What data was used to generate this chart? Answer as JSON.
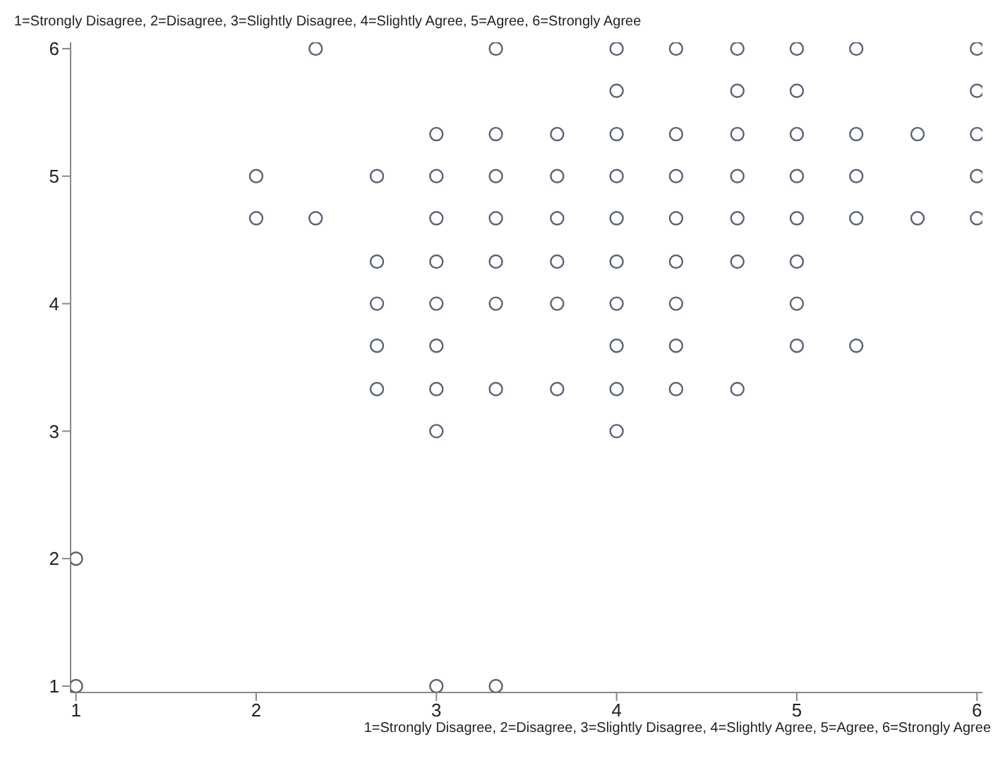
{
  "chart_data": {
    "type": "scatter",
    "ylabel": "1=Strongly Disagree, 2=Disagree, 3=Slightly Disagree, 4=Slightly Agree, 5=Agree, 6=Strongly Agree",
    "xlabel": "1=Strongly Disagree, 2=Disagree, 3=Slightly Disagree, 4=Slightly Agree, 5=Agree, 6=Strongly Agree",
    "x": [
      1,
      1,
      2,
      2,
      2.33,
      2.33,
      2.67,
      2.67,
      2.67,
      2.67,
      2.67,
      3,
      3,
      3,
      3,
      3,
      3,
      3,
      3,
      3,
      3.33,
      3.33,
      3.33,
      3.33,
      3.33,
      3.33,
      3.33,
      3.33,
      3.67,
      3.67,
      3.67,
      3.67,
      3.67,
      3.67,
      4,
      4,
      4,
      4,
      4,
      4,
      4,
      4,
      4,
      4,
      4.33,
      4.33,
      4.33,
      4.33,
      4.33,
      4.33,
      4.33,
      4.33,
      4.67,
      4.67,
      4.67,
      4.67,
      4.67,
      4.67,
      4.67,
      5,
      5,
      5,
      5,
      5,
      5,
      5,
      5,
      5.33,
      5.33,
      5.33,
      5.33,
      5.33,
      5.67,
      5.67,
      6,
      6,
      6,
      6,
      6
    ],
    "values": [
      2,
      1,
      5,
      4.67,
      6,
      4.67,
      5,
      4.33,
      4,
      3.67,
      3.33,
      5.33,
      5,
      4.67,
      4.33,
      4,
      3.67,
      3.33,
      3,
      1,
      6,
      5.33,
      5,
      4.67,
      4.33,
      4,
      3.33,
      1,
      5.33,
      5,
      4.67,
      4.33,
      4,
      3.33,
      6,
      5.67,
      5.33,
      5,
      4.67,
      4.33,
      4,
      3.67,
      3.33,
      3,
      6,
      5.33,
      5,
      4.67,
      4.33,
      4,
      3.67,
      3.33,
      6,
      5.67,
      5.33,
      5,
      4.67,
      4.33,
      3.33,
      6,
      5.67,
      5.33,
      5,
      4.67,
      4.33,
      4,
      3.67,
      6,
      5.33,
      5,
      4.67,
      3.67,
      5.33,
      4.67,
      6,
      5.67,
      5.33,
      5,
      4.67
    ],
    "color": "#5b6178",
    "marker": "circle",
    "xlim": [
      0.97,
      6.03
    ],
    "ylim": [
      0.95,
      6.05
    ],
    "xticks": [
      1,
      2,
      3,
      4,
      5,
      6
    ],
    "yticks": [
      1,
      2,
      3,
      4,
      5,
      6
    ],
    "grid": false
  }
}
